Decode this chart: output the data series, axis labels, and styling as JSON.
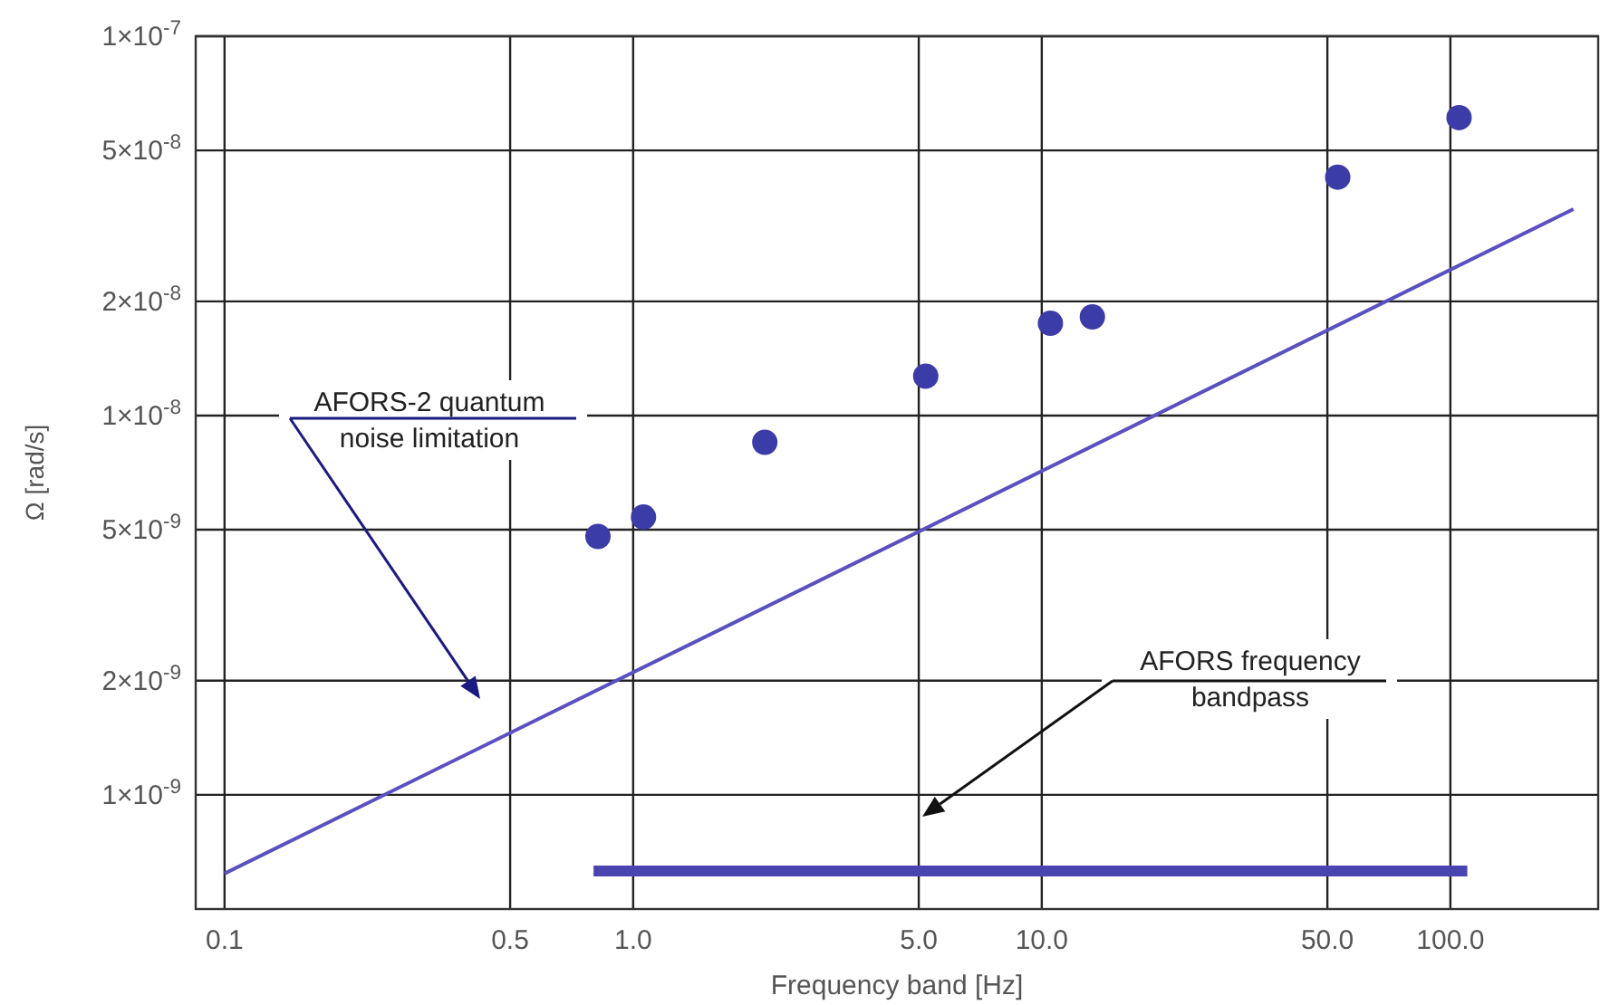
{
  "chart_data": {
    "type": "scatter",
    "xlabel": "Frequency band [Hz]",
    "ylabel": "Ω [rad/s]",
    "log": "xy",
    "grid": true,
    "marker": "circle",
    "xlim": [
      0.085,
      230
    ],
    "xticks": [
      {
        "value": 0.1,
        "label": "0.1"
      },
      {
        "value": 0.5,
        "label": "0.5"
      },
      {
        "value": 1,
        "label": "1.0"
      },
      {
        "value": 5,
        "label": "5.0"
      },
      {
        "value": 10,
        "label": "10.0"
      },
      {
        "value": 50,
        "label": "50.0"
      },
      {
        "value": 100,
        "label": "100.0"
      }
    ],
    "ylim": [
      5e-10,
      1e-07
    ],
    "yticks": [
      {
        "value": 1e-09,
        "label": "1×10$^{-9}$"
      },
      {
        "value": 2e-09,
        "label": "2×10$^{-9}$"
      },
      {
        "value": 5e-09,
        "label": "5×10$^{-9}$"
      },
      {
        "value": 1e-08,
        "label": "1×10$^{-8}$"
      },
      {
        "value": 2e-08,
        "label": "2×10$^{-8}$"
      },
      {
        "value": 5e-08,
        "label": "5×10$^{-8}$"
      },
      {
        "value": 1e-07,
        "label": "1×10$^{-7}$"
      }
    ],
    "series": [
      {
        "color": "#3c3ca8",
        "x": [
          0.82,
          1.06,
          2.1,
          5.2,
          10.5,
          13.3,
          53,
          105
        ],
        "values": [
          4.8e-09,
          5.4e-09,
          8.5e-09,
          1.27e-08,
          1.75e-08,
          1.82e-08,
          4.25e-08,
          6.1e-08
        ]
      },
      {
        "type": "line",
        "color": "#5a50c0",
        "marker": "none",
        "x": [
          0.1,
          200
        ],
        "values": [
          6.2e-10,
          3.5e-08
        ]
      },
      {
        "type": "line",
        "color": "#4a44b0",
        "marker": "none",
        "x": [
          0.8,
          110
        ],
        "values": [
          6.3e-10,
          6.3e-10
        ]
      }
    ],
    "annotations": [
      "AFORS-2 quantum\nnoise limitation",
      "AFORS frequency\nbandpass"
    ]
  }
}
